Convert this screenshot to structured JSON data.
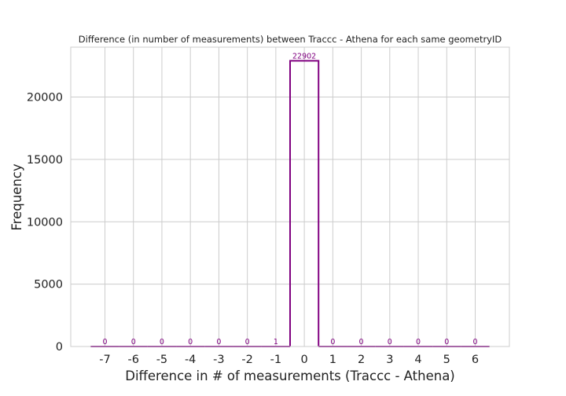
{
  "chart_data": {
    "type": "bar",
    "style": "step-histogram",
    "title": "Difference (in number of measurements) between Traccc - Athena for each same geometryID",
    "xlabel": "Difference in # of measurements (Traccc - Athena)",
    "ylabel": "Frequency",
    "categories": [
      "-7",
      "-6",
      "-5",
      "-4",
      "-3",
      "-2",
      "-1",
      "0",
      "1",
      "2",
      "3",
      "4",
      "5",
      "6"
    ],
    "x": [
      -7,
      -6,
      -5,
      -4,
      -3,
      -2,
      -1,
      0,
      1,
      2,
      3,
      4,
      5,
      6
    ],
    "values": [
      0,
      0,
      0,
      0,
      0,
      0,
      1,
      22902,
      0,
      0,
      0,
      0,
      0,
      0
    ],
    "data_labels": [
      "0",
      "0",
      "0",
      "0",
      "0",
      "0",
      "1",
      "22902",
      "0",
      "0",
      "0",
      "0",
      "0",
      "0"
    ],
    "xlim": [
      -8.2,
      7.2
    ],
    "ylim": [
      0,
      24000
    ],
    "yticks": [
      0,
      5000,
      10000,
      15000,
      20000
    ],
    "ytick_labels": [
      "0",
      "5000",
      "10000",
      "15000",
      "20000"
    ],
    "grid": true,
    "legend": "none",
    "colors": {
      "bar": "#800080",
      "grid": "#cccccc",
      "text": "#222222"
    }
  }
}
